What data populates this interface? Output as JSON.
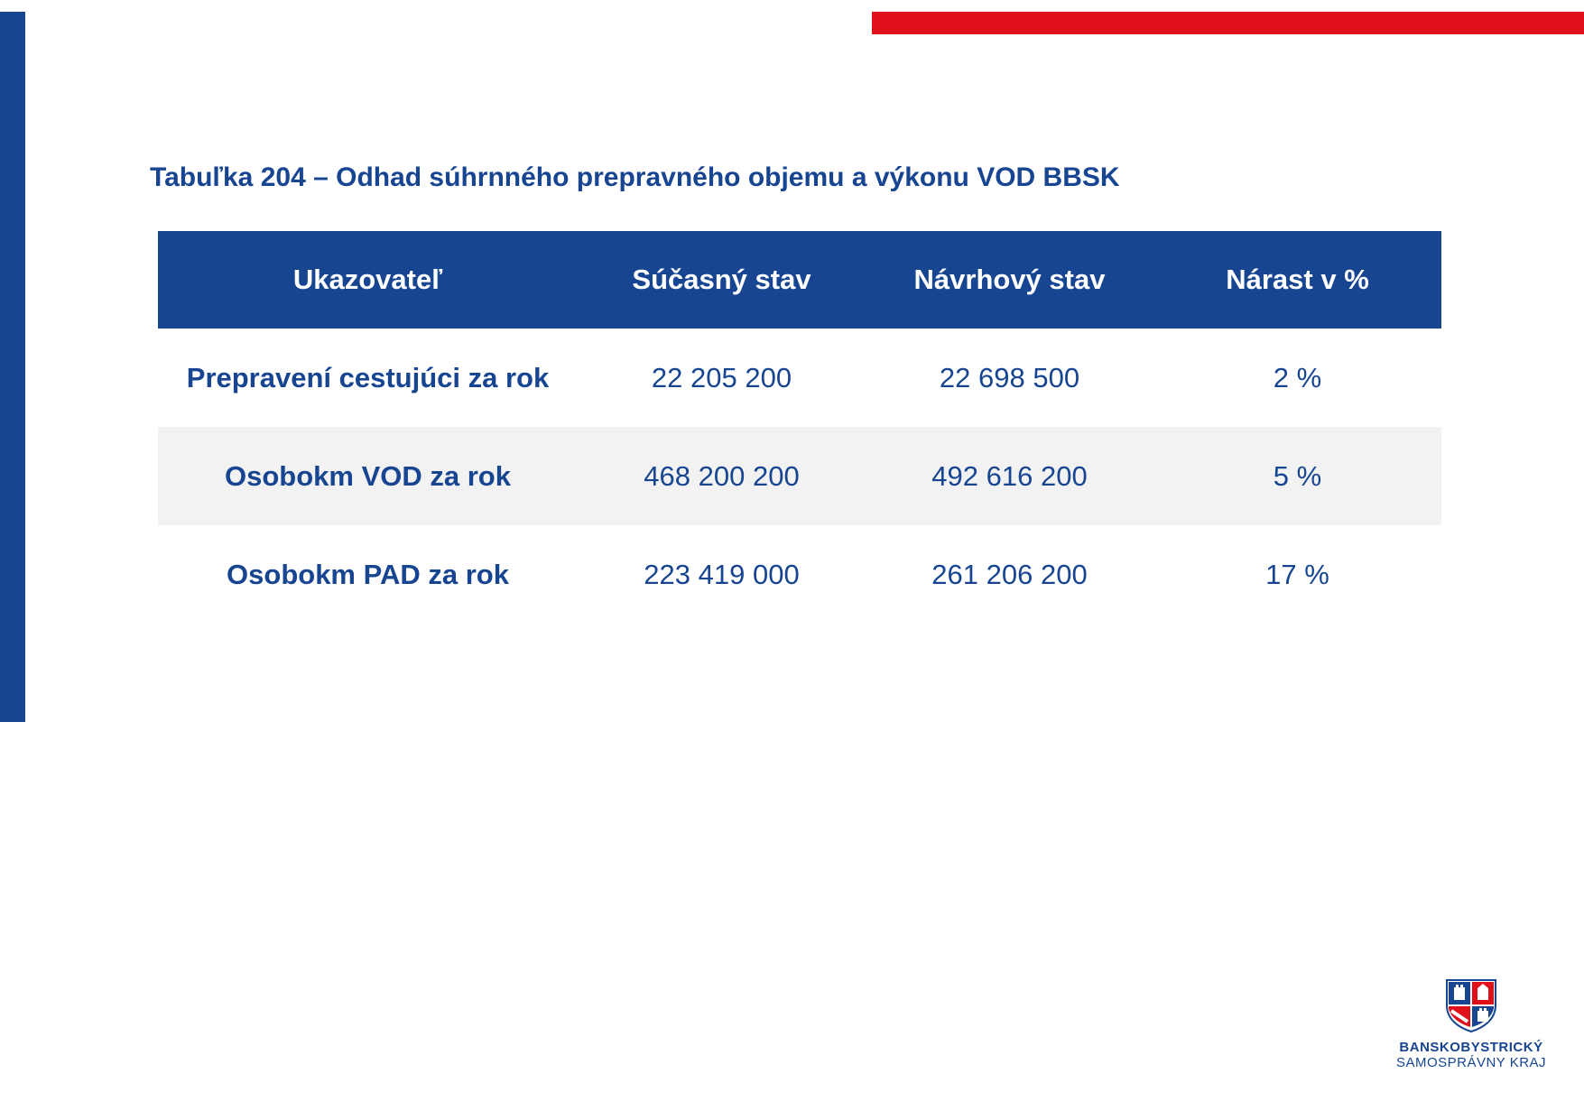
{
  "title": "Tabuľka 204 – Odhad súhrnného prepravného objemu a výkonu VOD BBSK",
  "table": {
    "headers": [
      "Ukazovateľ",
      "Súčasný stav",
      "Návrhový stav",
      "Nárast v %"
    ],
    "rows": [
      {
        "label": "Prepravení cestujúci za rok",
        "current": "22 205 200",
        "proposed": "22 698 500",
        "increase": "2 %"
      },
      {
        "label": "Osobokm VOD za rok",
        "current": "468 200 200",
        "proposed": "492 616 200",
        "increase": "5 %"
      },
      {
        "label": "Osobokm PAD za rok",
        "current": "223 419 000",
        "proposed": "261 206 200",
        "increase": "17 %"
      }
    ]
  },
  "logo": {
    "line1": "BANSKOBYSTRICKÝ",
    "line2": "SAMOSPRÁVNY KRAJ"
  },
  "colors": {
    "brand_blue": "#174592",
    "accent_red": "#e0101b",
    "row_shade": "#f2f2f2"
  }
}
